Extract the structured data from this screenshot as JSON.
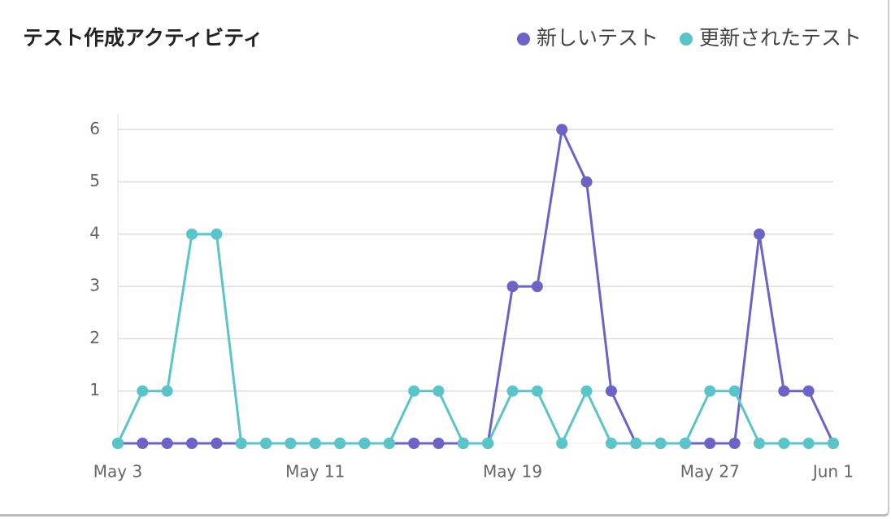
{
  "chart_data": {
    "type": "line",
    "title": "テスト作成アクティビティ",
    "categories": [
      "May 3",
      null,
      null,
      null,
      null,
      null,
      null,
      null,
      "May 11",
      null,
      null,
      null,
      null,
      null,
      null,
      null,
      "May 19",
      null,
      null,
      null,
      null,
      null,
      null,
      null,
      "May 27",
      null,
      null,
      null,
      null,
      "Jun 1"
    ],
    "series": [
      {
        "name": "新しいテスト",
        "color": "#6c63c6",
        "values": [
          0,
          0,
          0,
          0,
          0,
          0,
          0,
          0,
          0,
          0,
          0,
          0,
          0,
          0,
          0,
          0,
          3,
          3,
          6,
          5,
          1,
          0,
          0,
          0,
          0,
          0,
          4,
          1,
          1,
          0
        ]
      },
      {
        "name": "更新されたテスト",
        "color": "#5bc4c8",
        "values": [
          0,
          1,
          1,
          4,
          4,
          0,
          0,
          0,
          0,
          0,
          0,
          0,
          1,
          1,
          0,
          0,
          1,
          1,
          0,
          1,
          0,
          0,
          0,
          0,
          1,
          1,
          0,
          0,
          0,
          0
        ]
      }
    ],
    "ylim": [
      0,
      6.3
    ],
    "yticks": [
      1,
      2,
      3,
      4,
      5,
      6
    ],
    "grid": true,
    "legend": "top-right"
  }
}
